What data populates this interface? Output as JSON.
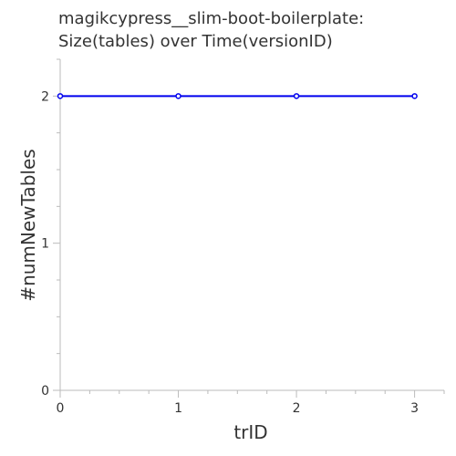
{
  "chart_data": {
    "type": "line",
    "title_lines": [
      "magikcypress__slim-boot-boilerplate:",
      "Size(tables) over Time(versionID)"
    ],
    "xlabel": "trID",
    "ylabel": "#numNewTables",
    "x": [
      0,
      1,
      2,
      3
    ],
    "series": [
      {
        "values": [
          2,
          2,
          2,
          2
        ],
        "color": "#0000ee"
      }
    ],
    "xlim": [
      0,
      3.25
    ],
    "ylim": [
      0,
      2.25
    ],
    "x_major_ticks": [
      0,
      1,
      2,
      3
    ],
    "x_tick_labels": [
      "0",
      "1",
      "2",
      "3"
    ],
    "x_minor_ticks": [
      0.25,
      0.5,
      0.75,
      1.25,
      1.5,
      1.75,
      2.25,
      2.5,
      2.75,
      3.25
    ],
    "y_major_ticks": [
      0,
      1,
      2
    ],
    "y_tick_labels": [
      "0",
      "1",
      "2"
    ],
    "y_minor_ticks": [
      0.25,
      0.5,
      0.75,
      1.25,
      1.5,
      1.75,
      2.25
    ],
    "grid": false,
    "legend": "none"
  }
}
